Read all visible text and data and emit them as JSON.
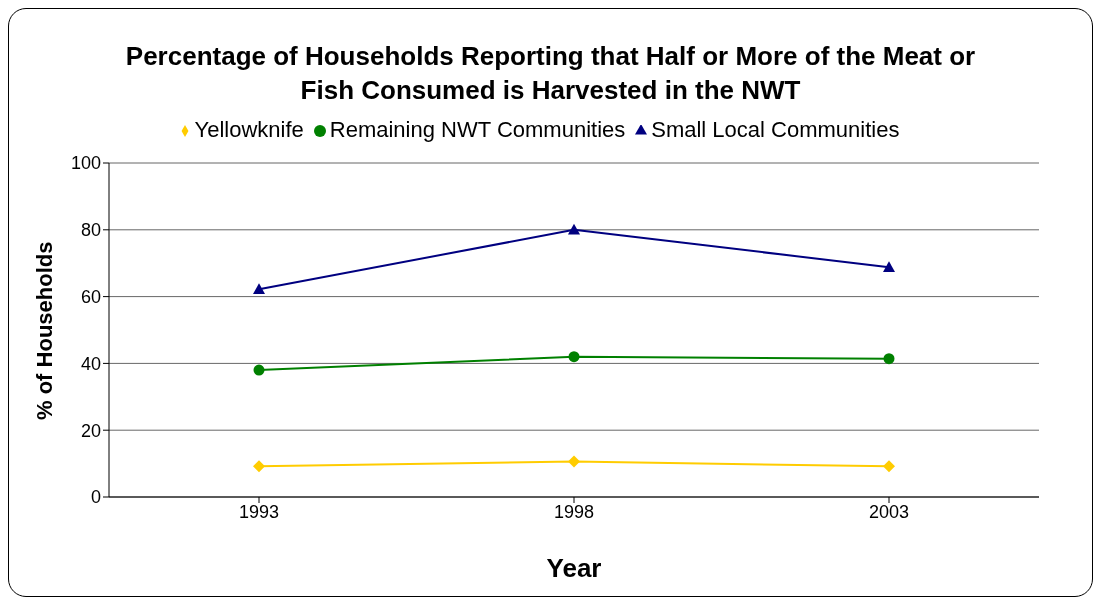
{
  "chart_data": {
    "type": "line",
    "title": "Percentage of Households Reporting that Half or More of the Meat or Fish Consumed is Harvested in the NWT",
    "xlabel": "Year",
    "ylabel": "% of Households",
    "categories": [
      "1993",
      "1998",
      "2003"
    ],
    "series": [
      {
        "name": "Yellowknife",
        "color": "#ffcc00",
        "marker": "diamond",
        "values": [
          9.2,
          10.6,
          9.2
        ]
      },
      {
        "name": "Remaining NWT Communities",
        "color": "#008000",
        "marker": "circle",
        "values": [
          38,
          42,
          41.4
        ]
      },
      {
        "name": "Small Local Communities",
        "color": "#000080",
        "marker": "triangle",
        "values": [
          62.2,
          80,
          68.8
        ]
      }
    ],
    "ylim": [
      0,
      100
    ],
    "yticks": [
      0,
      20,
      40,
      60,
      80,
      100
    ],
    "grid": "y",
    "legend": "top"
  }
}
